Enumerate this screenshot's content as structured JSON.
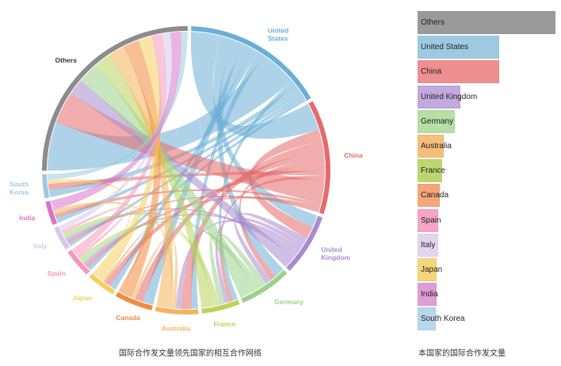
{
  "captions": {
    "chord": "国际合作发文量领先国家的相互合作网络",
    "bar": "本国家的国际合作发文量"
  },
  "chart_data": [
    {
      "type": "chord",
      "title": "国际合作发文量领先国家的相互合作网络",
      "groups": [
        {
          "name": "United States",
          "label_lines": [
            "United",
            "States"
          ],
          "value": 30,
          "color": "#6baed6"
        },
        {
          "name": "China",
          "label_lines": [
            "China"
          ],
          "value": 24,
          "color": "#e66a6a"
        },
        {
          "name": "United Kingdom",
          "label_lines": [
            "United",
            "Kingdom"
          ],
          "value": 13,
          "color": "#a98bd0"
        },
        {
          "name": "Germany",
          "label_lines": [
            "Germany"
          ],
          "value": 11,
          "color": "#9bd18b"
        },
        {
          "name": "France",
          "label_lines": [
            "France"
          ],
          "value": 8,
          "color": "#b9d35c"
        },
        {
          "name": "Australia",
          "label_lines": [
            "Australia"
          ],
          "value": 9,
          "color": "#f6b35a"
        },
        {
          "name": "Canada",
          "label_lines": [
            "Canada"
          ],
          "value": 8,
          "color": "#f08c3c"
        },
        {
          "name": "Japan",
          "label_lines": [
            "Japan"
          ],
          "value": 6,
          "color": "#f4cf5e"
        },
        {
          "name": "Spain",
          "label_lines": [
            "Spain"
          ],
          "value": 6,
          "color": "#f497bd"
        },
        {
          "name": "Italy",
          "label_lines": [
            "Italy"
          ],
          "value": 5,
          "color": "#d6c8ea"
        },
        {
          "name": "India",
          "label_lines": [
            "India"
          ],
          "value": 5,
          "color": "#d874c8"
        },
        {
          "name": "South Korea",
          "label_lines": [
            "South",
            "Korea"
          ],
          "value": 5,
          "color": "#9ecae1"
        },
        {
          "name": "Others",
          "label_lines": [
            "Others"
          ],
          "value": 47,
          "color": "#8c8c8c"
        }
      ]
    },
    {
      "type": "bar",
      "orientation": "horizontal",
      "title": "本国家的国际合作发文量",
      "categories": [
        "Others",
        "United States",
        "China",
        "United Kingdom",
        "Germany",
        "Australia",
        "France",
        "Canada",
        "Spain",
        "Italy",
        "Japan",
        "India",
        "South Korea"
      ],
      "values": [
        100,
        59,
        59,
        31,
        27,
        19,
        18,
        16,
        15,
        15,
        14,
        14,
        13
      ],
      "colors": [
        "#9a9a9a",
        "#9ecae1",
        "#ef8f8f",
        "#c3a9dd",
        "#b6dea5",
        "#f6be7c",
        "#bcd76f",
        "#f4a77a",
        "#f4a6c4",
        "#e2d6ef",
        "#f5d67a",
        "#e19dd6",
        "#b8d6ec"
      ]
    }
  ]
}
